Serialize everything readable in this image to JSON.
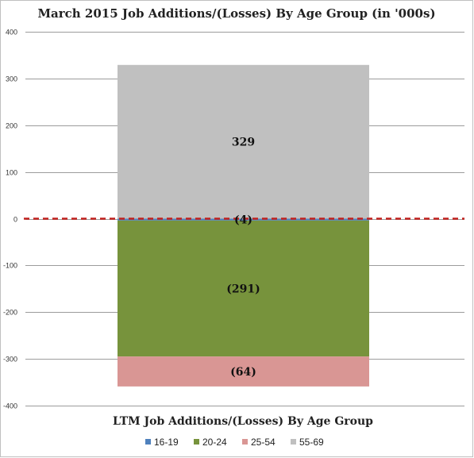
{
  "chart_data": {
    "type": "bar",
    "stacked": true,
    "title": "March 2015 Job Additions/(Losses) By Age Group (in '000s)",
    "xlabel": "LTM Job Additions/(Losses) By Age Group",
    "ylabel": "",
    "ylim": [
      -400,
      400
    ],
    "yticks": [
      -400,
      -300,
      -200,
      -100,
      0,
      100,
      200,
      300,
      400
    ],
    "ytick_labels": [
      "-400",
      "-300",
      "-200",
      "-100",
      "0",
      "100",
      "200",
      "300",
      "400"
    ],
    "grid": true,
    "legend_position": "bottom",
    "reference_line": {
      "value": 0,
      "style": "dashed",
      "color": "#c0201d"
    },
    "categories": [
      ""
    ],
    "series": [
      {
        "name": "16-19",
        "values": [
          -4
        ],
        "color": "#4f81bd",
        "label": "(4)"
      },
      {
        "name": "20-24",
        "values": [
          -291
        ],
        "color": "#77933c",
        "label": "(291)"
      },
      {
        "name": "25-54",
        "values": [
          -64
        ],
        "color": "#d99694",
        "label": "(64)"
      },
      {
        "name": "55-69",
        "values": [
          329
        ],
        "color": "#c0c0c0",
        "label": "329"
      }
    ]
  }
}
